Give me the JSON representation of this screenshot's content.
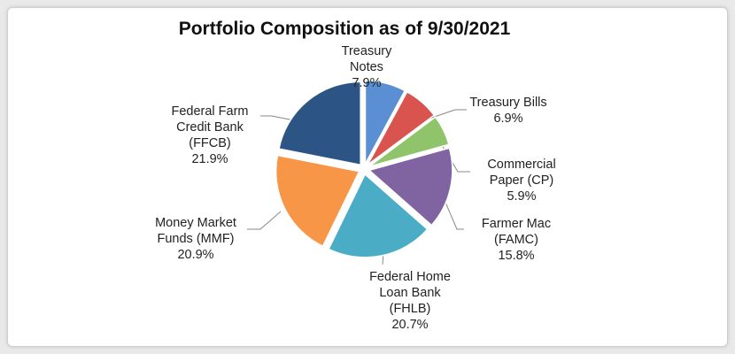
{
  "chart_data": {
    "type": "pie",
    "title": "Portfolio Composition as of 9/30/2021",
    "categories": [
      "Treasury\nNotes",
      "Treasury Bills",
      "Commercial\nPaper (CP)",
      "Farmer Mac\n(FAMC)",
      "Federal Home\nLoan Bank\n(FHLB)",
      "Money Market\nFunds (MMF)",
      "Federal Farm\nCredit Bank\n(FFCB)"
    ],
    "values": [
      7.9,
      6.9,
      5.9,
      15.8,
      20.7,
      20.9,
      21.9
    ],
    "value_labels": [
      "7.9%",
      "6.9%",
      "5.9%",
      "15.8%",
      "20.7%",
      "20.9%",
      "21.9%"
    ],
    "colors": [
      "#5b8fd4",
      "#d9534f",
      "#8fc46a",
      "#8064a2",
      "#4bacc6",
      "#f79646",
      "#2c5586"
    ]
  }
}
